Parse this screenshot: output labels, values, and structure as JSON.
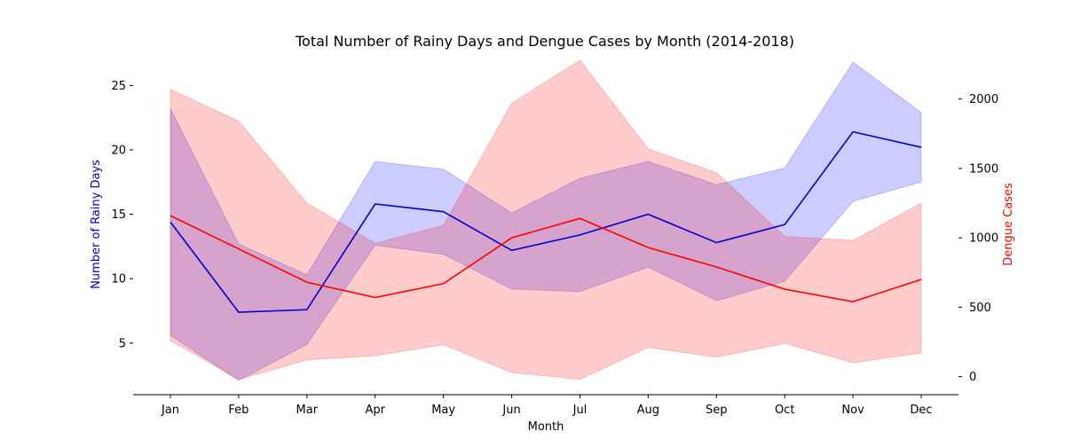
{
  "chart_data": {
    "type": "line",
    "title": "Total Number of Rainy Days and Dengue Cases by Month (2014-2018)",
    "xlabel": "Month",
    "ylabel_left": "Number of Rainy Days",
    "ylabel_right": "Dengue Cases",
    "categories": [
      "Jan",
      "Feb",
      "Mar",
      "Apr",
      "May",
      "Jun",
      "Jul",
      "Aug",
      "Sep",
      "Oct",
      "Nov",
      "Dec"
    ],
    "ylim_left": [
      1.0,
      27.5
    ],
    "ylim_right": [
      -130,
      2330
    ],
    "yticks_left": [
      5,
      10,
      15,
      20,
      25
    ],
    "yticks_right": [
      0,
      500,
      1000,
      1500,
      2000
    ],
    "grid": false,
    "series": [
      {
        "axis": "left",
        "color": "#0000cc",
        "band_color": "#0000ff",
        "values": [
          14.4,
          7.4,
          7.6,
          15.8,
          15.2,
          12.2,
          13.4,
          15.0,
          12.8,
          14.2,
          21.4,
          20.2
        ],
        "upper": [
          23.2,
          12.7,
          10.3,
          19.1,
          18.5,
          15.1,
          17.8,
          19.1,
          17.3,
          18.6,
          26.8,
          22.9
        ],
        "lower": [
          5.6,
          2.1,
          4.9,
          12.6,
          11.9,
          9.2,
          9.0,
          10.9,
          8.3,
          9.8,
          16.0,
          17.5
        ]
      },
      {
        "axis": "right",
        "color": "#ff0000",
        "band_color": "#ff0000",
        "values": [
          1160,
          920,
          680,
          570,
          670,
          1000,
          1140,
          930,
          790,
          630,
          540,
          700
        ],
        "upper": [
          2070,
          1840,
          1250,
          960,
          1090,
          1970,
          2280,
          1640,
          1470,
          1010,
          980,
          1250
        ],
        "lower": [
          260,
          -20,
          120,
          150,
          230,
          30,
          -20,
          210,
          140,
          240,
          100,
          170
        ]
      }
    ]
  }
}
